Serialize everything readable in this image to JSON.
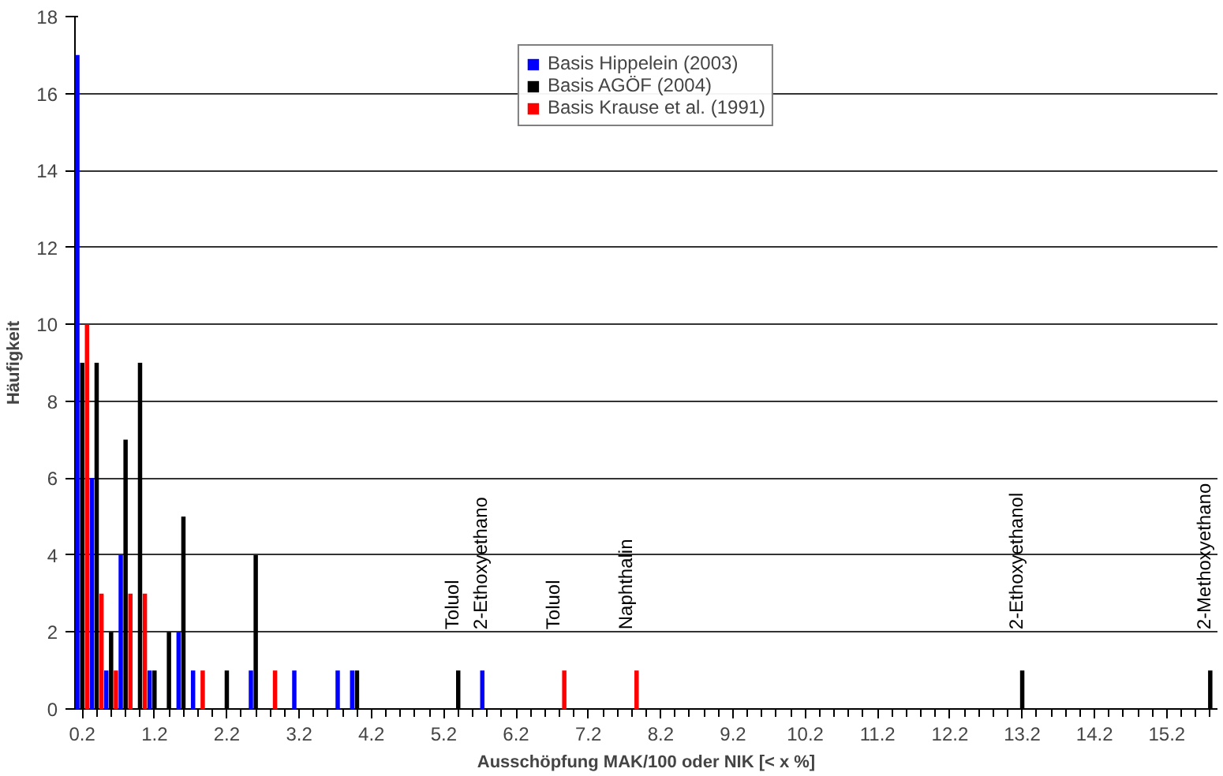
{
  "chart_data": {
    "type": "bar",
    "xlabel": "Ausschöpfung MAK/100 oder NIK [< x %]",
    "ylabel": "Häufigkeit",
    "xlim": [
      0.1,
      15.9
    ],
    "ylim": [
      0,
      18
    ],
    "yticks": [
      0,
      2,
      4,
      6,
      8,
      10,
      12,
      14,
      16,
      18
    ],
    "xticks": [
      0.2,
      1.2,
      2.2,
      3.2,
      4.2,
      5.2,
      6.2,
      7.2,
      8.2,
      9.2,
      10.2,
      11.2,
      12.2,
      13.2,
      14.2,
      15.2
    ],
    "grid": "y",
    "legend": "top",
    "x": [
      0.2,
      0.4,
      0.6,
      0.8,
      1.0,
      1.2,
      1.4,
      1.6,
      1.8,
      2.0,
      2.2,
      2.4,
      2.6,
      2.8,
      3.0,
      3.2,
      3.4,
      3.6,
      3.8,
      4.0,
      4.2,
      4.4,
      4.6,
      4.8,
      5.0,
      5.2,
      5.4,
      5.6,
      5.8,
      6.0,
      6.2,
      6.4,
      6.6,
      6.8,
      7.0,
      7.2,
      7.4,
      7.6,
      7.8,
      8.0,
      8.2,
      8.4,
      8.6,
      8.8,
      9.0,
      9.2,
      9.4,
      9.6,
      9.8,
      10.0,
      10.2,
      10.4,
      10.6,
      10.8,
      11.0,
      11.2,
      11.4,
      11.6,
      11.8,
      12.0,
      12.2,
      12.4,
      12.6,
      12.8,
      13.0,
      13.2,
      13.4,
      13.6,
      13.8,
      14.0,
      14.2,
      14.4,
      14.6,
      14.8,
      15.0,
      15.2,
      15.4,
      15.6,
      15.8
    ],
    "series": [
      {
        "name": "Basis Hippelein (2003)",
        "color": "#0000ff",
        "values": [
          17,
          6,
          1,
          4,
          null,
          1,
          null,
          2,
          1,
          null,
          null,
          null,
          1,
          null,
          null,
          1,
          null,
          null,
          1,
          1,
          null,
          null,
          null,
          null,
          null,
          null,
          null,
          null,
          1,
          null,
          null,
          null,
          null,
          null,
          null,
          null,
          null,
          null,
          null,
          null,
          null,
          null,
          null,
          null,
          null,
          null,
          null,
          null,
          null,
          null,
          null,
          null,
          null,
          null,
          null,
          null,
          null,
          null,
          null,
          null,
          null,
          null,
          null,
          null,
          null,
          null,
          null,
          null,
          null,
          null,
          null,
          null,
          null,
          null,
          null,
          null,
          null,
          null,
          null
        ]
      },
      {
        "name": "Basis AGÖF (2004)",
        "color": "#000000",
        "values": [
          9,
          9,
          2,
          7,
          9,
          1,
          2,
          5,
          null,
          null,
          1,
          null,
          4,
          null,
          null,
          null,
          null,
          null,
          null,
          1,
          null,
          null,
          null,
          null,
          null,
          null,
          1,
          null,
          null,
          null,
          null,
          null,
          null,
          null,
          null,
          null,
          null,
          null,
          null,
          null,
          null,
          null,
          null,
          null,
          null,
          null,
          null,
          null,
          null,
          null,
          null,
          null,
          null,
          null,
          null,
          null,
          null,
          null,
          null,
          null,
          null,
          null,
          null,
          null,
          null,
          1,
          null,
          null,
          null,
          null,
          null,
          null,
          null,
          null,
          null,
          null,
          null,
          null,
          1
        ]
      },
      {
        "name": "Basis Krause et al. (1991)",
        "color": "#ff0000",
        "values": [
          10,
          3,
          1,
          3,
          3,
          null,
          null,
          null,
          1,
          null,
          null,
          null,
          null,
          1,
          null,
          null,
          null,
          null,
          null,
          null,
          null,
          null,
          null,
          null,
          null,
          null,
          null,
          null,
          null,
          null,
          null,
          null,
          null,
          1,
          null,
          null,
          null,
          null,
          1,
          null,
          null,
          null,
          null,
          null,
          null,
          null,
          null,
          null,
          null,
          null,
          null,
          null,
          null,
          null,
          null,
          null,
          null,
          null,
          null,
          null,
          null,
          null,
          null,
          null,
          null,
          null,
          null,
          null,
          null,
          null,
          null,
          null,
          null,
          null,
          null,
          null,
          null,
          null,
          null
        ]
      }
    ],
    "annotations": [
      {
        "text": "Toluol",
        "x": 5.4,
        "y": 1
      },
      {
        "text": "2-Ethoxyethano",
        "x": 5.8,
        "y": 1
      },
      {
        "text": "Toluol",
        "x": 6.8,
        "y": 1
      },
      {
        "text": "Naphthalin",
        "x": 7.8,
        "y": 1
      },
      {
        "text": "2-Ethoxyethanol",
        "x": 13.2,
        "y": 1
      },
      {
        "text": "2-Methoxyethano",
        "x": 15.8,
        "y": 1
      }
    ]
  }
}
